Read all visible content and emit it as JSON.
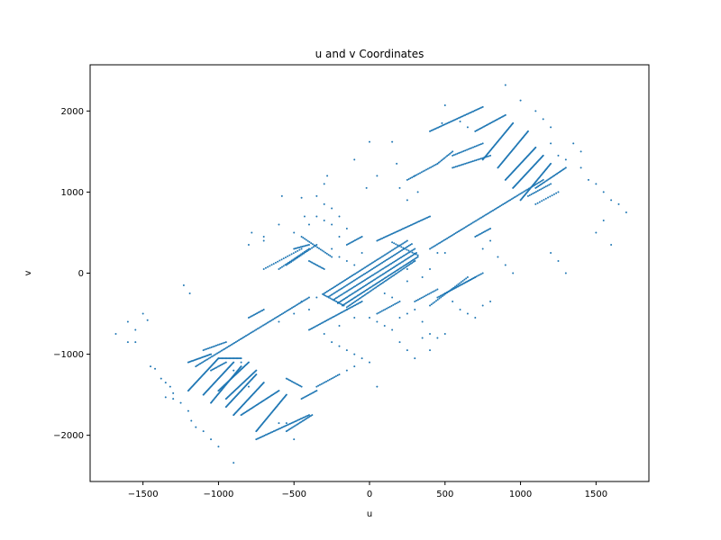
{
  "chart_data": {
    "type": "scatter",
    "title": "u and v Coordinates",
    "xlabel": "u",
    "ylabel": "v",
    "xlim": [
      -1850,
      1850
    ],
    "ylim": [
      -2570,
      2570
    ],
    "xticks": [
      -1500,
      -1000,
      -500,
      0,
      500,
      1000,
      1500
    ],
    "yticks": [
      -2000,
      -1000,
      0,
      1000,
      2000
    ],
    "xtick_labels": [
      "−1500",
      "−1000",
      "−500",
      "0",
      "500",
      "1000",
      "1500"
    ],
    "ytick_labels": [
      "−2000",
      "−1000",
      "0",
      "1000",
      "2000"
    ],
    "grid": false,
    "legend": "none",
    "marker_color": "#1f77b4",
    "segments": [
      {
        "from": [
          -300,
          -250
        ],
        "to": [
          250,
          400
        ],
        "n": 60
      },
      {
        "from": [
          -270,
          -290
        ],
        "to": [
          280,
          360
        ],
        "n": 60
      },
      {
        "from": [
          -240,
          -330
        ],
        "to": [
          300,
          300
        ],
        "n": 60
      },
      {
        "from": [
          -210,
          -370
        ],
        "to": [
          310,
          250
        ],
        "n": 60
      },
      {
        "from": [
          -180,
          -400
        ],
        "to": [
          320,
          200
        ],
        "n": 60
      },
      {
        "from": [
          -150,
          -420
        ],
        "to": [
          300,
          150
        ],
        "n": 50
      },
      {
        "from": [
          -310,
          -260
        ],
        "to": [
          -170,
          -400
        ],
        "n": 15
      },
      {
        "from": [
          150,
          380
        ],
        "to": [
          320,
          220
        ],
        "n": 15
      },
      {
        "from": [
          -400,
          -700
        ],
        "to": [
          -50,
          -350
        ],
        "n": 40
      },
      {
        "from": [
          50,
          400
        ],
        "to": [
          400,
          700
        ],
        "n": 40
      },
      {
        "from": [
          -1150,
          -1150
        ],
        "to": [
          -400,
          -300
        ],
        "n": 80
      },
      {
        "from": [
          400,
          300
        ],
        "to": [
          1150,
          1150
        ],
        "n": 80
      },
      {
        "from": [
          -750,
          -2050
        ],
        "to": [
          -400,
          -1750
        ],
        "n": 40
      },
      {
        "from": [
          400,
          1750
        ],
        "to": [
          750,
          2050
        ],
        "n": 40
      },
      {
        "from": [
          -550,
          -1950
        ],
        "to": [
          -380,
          -1750
        ],
        "n": 20
      },
      {
        "from": [
          -1200,
          -1100
        ],
        "to": [
          -1050,
          -1000
        ],
        "n": 20
      },
      {
        "from": [
          -1000,
          -1050
        ],
        "to": [
          -850,
          -1050
        ],
        "n": 20
      },
      {
        "from": [
          -750,
          -1950
        ],
        "to": [
          -550,
          -1500
        ],
        "n": 40
      },
      {
        "from": [
          -900,
          -1750
        ],
        "to": [
          -700,
          -1350
        ],
        "n": 40
      },
      {
        "from": [
          -950,
          -1650
        ],
        "to": [
          -750,
          -1250
        ],
        "n": 40
      },
      {
        "from": [
          -1050,
          -1600
        ],
        "to": [
          -850,
          -1150
        ],
        "n": 40
      },
      {
        "from": [
          -1100,
          -1500
        ],
        "to": [
          -900,
          -1100
        ],
        "n": 40
      },
      {
        "from": [
          -1200,
          -1450
        ],
        "to": [
          -1000,
          -1050
        ],
        "n": 40
      },
      {
        "from": [
          -1000,
          -1450
        ],
        "to": [
          -800,
          -1100
        ],
        "n": 35
      },
      {
        "from": [
          -950,
          -1550
        ],
        "to": [
          -750,
          -1200
        ],
        "n": 35
      },
      {
        "from": [
          -850,
          -1750
        ],
        "to": [
          -600,
          -1450
        ],
        "n": 35
      },
      {
        "from": [
          -1100,
          -950
        ],
        "to": [
          -950,
          -850
        ],
        "n": 15
      },
      {
        "from": [
          -1050,
          -1200
        ],
        "to": [
          -950,
          -1100
        ],
        "n": 12
      },
      {
        "from": [
          -450,
          -1550
        ],
        "to": [
          -350,
          -1450
        ],
        "n": 12
      },
      {
        "from": [
          -350,
          -1400
        ],
        "to": [
          -200,
          -1250
        ],
        "n": 15
      },
      {
        "from": [
          -550,
          -1300
        ],
        "to": [
          -450,
          -1400
        ],
        "n": 12
      },
      {
        "from": [
          550,
          1300
        ],
        "to": [
          800,
          1450
        ],
        "n": 25
      },
      {
        "from": [
          550,
          1450
        ],
        "to": [
          750,
          1600
        ],
        "n": 20
      },
      {
        "from": [
          700,
          1750
        ],
        "to": [
          900,
          1950
        ],
        "n": 25
      },
      {
        "from": [
          750,
          1400
        ],
        "to": [
          950,
          1850
        ],
        "n": 40
      },
      {
        "from": [
          850,
          1300
        ],
        "to": [
          1050,
          1750
        ],
        "n": 40
      },
      {
        "from": [
          900,
          1150
        ],
        "to": [
          1100,
          1550
        ],
        "n": 40
      },
      {
        "from": [
          950,
          1050
        ],
        "to": [
          1150,
          1450
        ],
        "n": 40
      },
      {
        "from": [
          1000,
          900
        ],
        "to": [
          1200,
          1350
        ],
        "n": 40
      },
      {
        "from": [
          1100,
          1050
        ],
        "to": [
          1300,
          1300
        ],
        "n": 25
      },
      {
        "from": [
          1050,
          950
        ],
        "to": [
          1200,
          1100
        ],
        "n": 15
      },
      {
        "from": [
          1100,
          850
        ],
        "to": [
          1250,
          1000
        ],
        "n": 12
      },
      {
        "from": [
          250,
          1150
        ],
        "to": [
          450,
          1350
        ],
        "n": 20
      },
      {
        "from": [
          450,
          1350
        ],
        "to": [
          550,
          1500
        ],
        "n": 12
      },
      {
        "from": [
          -450,
          450
        ],
        "to": [
          -250,
          200
        ],
        "n": 20
      },
      {
        "from": [
          -500,
          300
        ],
        "to": [
          -400,
          350
        ],
        "n": 12
      },
      {
        "from": [
          -550,
          100
        ],
        "to": [
          -350,
          350
        ],
        "n": 20
      },
      {
        "from": [
          -600,
          50
        ],
        "to": [
          -400,
          300
        ],
        "n": 20
      },
      {
        "from": [
          -700,
          50
        ],
        "to": [
          -450,
          300
        ],
        "n": 20
      },
      {
        "from": [
          -800,
          -550
        ],
        "to": [
          -700,
          -450
        ],
        "n": 12
      },
      {
        "from": [
          -400,
          150
        ],
        "to": [
          -300,
          50
        ],
        "n": 12
      },
      {
        "from": [
          -150,
          350
        ],
        "to": [
          -50,
          450
        ],
        "n": 12
      },
      {
        "from": [
          50,
          -500
        ],
        "to": [
          200,
          -350
        ],
        "n": 15
      },
      {
        "from": [
          300,
          -350
        ],
        "to": [
          450,
          -200
        ],
        "n": 15
      },
      {
        "from": [
          400,
          -400
        ],
        "to": [
          650,
          -50
        ],
        "n": 25
      },
      {
        "from": [
          450,
          -300
        ],
        "to": [
          700,
          -50
        ],
        "n": 25
      },
      {
        "from": [
          500,
          -250
        ],
        "to": [
          750,
          0
        ],
        "n": 25
      },
      {
        "from": [
          700,
          450
        ],
        "to": [
          800,
          550
        ],
        "n": 12
      }
    ],
    "scatter_points": [
      [
        -1680,
        -750
      ],
      [
        -1600,
        -850
      ],
      [
        -1550,
        -850
      ],
      [
        -1600,
        -600
      ],
      [
        -1550,
        -700
      ],
      [
        -1500,
        -500
      ],
      [
        -1470,
        -580
      ],
      [
        -1450,
        -1150
      ],
      [
        -1420,
        -1180
      ],
      [
        -1380,
        -1300
      ],
      [
        -1350,
        -1350
      ],
      [
        -1320,
        -1400
      ],
      [
        -1300,
        -1480
      ],
      [
        -1350,
        -1530
      ],
      [
        -1300,
        -1550
      ],
      [
        -1250,
        -1600
      ],
      [
        -1200,
        -1700
      ],
      [
        -1180,
        -1820
      ],
      [
        -1150,
        -1900
      ],
      [
        -1100,
        -1950
      ],
      [
        -1050,
        -2050
      ],
      [
        -1000,
        -2140
      ],
      [
        -900,
        -2340
      ],
      [
        -1230,
        -150
      ],
      [
        -1190,
        -250
      ],
      [
        -800,
        350
      ],
      [
        -780,
        500
      ],
      [
        -700,
        450
      ],
      [
        -700,
        400
      ],
      [
        -600,
        600
      ],
      [
        -580,
        950
      ],
      [
        -500,
        500
      ],
      [
        -450,
        930
      ],
      [
        -430,
        700
      ],
      [
        -400,
        600
      ],
      [
        -350,
        700
      ],
      [
        -300,
        650
      ],
      [
        -250,
        600
      ],
      [
        -200,
        700
      ],
      [
        -200,
        450
      ],
      [
        -150,
        550
      ],
      [
        -300,
        1100
      ],
      [
        -280,
        1200
      ],
      [
        -350,
        950
      ],
      [
        -300,
        850
      ],
      [
        -250,
        800
      ],
      [
        -100,
        1400
      ],
      [
        -20,
        1050
      ],
      [
        50,
        1200
      ],
      [
        150,
        1620
      ],
      [
        180,
        1350
      ],
      [
        200,
        1050
      ],
      [
        250,
        900
      ],
      [
        300,
        1200
      ],
      [
        320,
        1000
      ],
      [
        500,
        2070
      ],
      [
        480,
        1850
      ],
      [
        600,
        1870
      ],
      [
        650,
        1800
      ],
      [
        900,
        2320
      ],
      [
        1000,
        2130
      ],
      [
        1100,
        2000
      ],
      [
        1150,
        1900
      ],
      [
        1200,
        1800
      ],
      [
        1200,
        1600
      ],
      [
        1250,
        1450
      ],
      [
        1300,
        1400
      ],
      [
        1350,
        1600
      ],
      [
        1400,
        1300
      ],
      [
        1400,
        1500
      ],
      [
        1450,
        1150
      ],
      [
        1500,
        1100
      ],
      [
        1550,
        1000
      ],
      [
        1600,
        900
      ],
      [
        1650,
        850
      ],
      [
        1700,
        750
      ],
      [
        1500,
        500
      ],
      [
        1550,
        650
      ],
      [
        1600,
        350
      ],
      [
        1200,
        250
      ],
      [
        1250,
        150
      ],
      [
        1300,
        0
      ],
      [
        -300,
        -750
      ],
      [
        -250,
        -850
      ],
      [
        -200,
        -900
      ],
      [
        -150,
        -950
      ],
      [
        -100,
        -1000
      ],
      [
        -50,
        -1050
      ],
      [
        0,
        -1100
      ],
      [
        50,
        -1400
      ],
      [
        -100,
        -1150
      ],
      [
        -150,
        -1200
      ],
      [
        -500,
        -2050
      ],
      [
        -600,
        -1850
      ],
      [
        -550,
        -1850
      ],
      [
        -800,
        -1400
      ],
      [
        -850,
        -1100
      ],
      [
        -900,
        -1200
      ],
      [
        -600,
        -600
      ],
      [
        -500,
        -500
      ],
      [
        -450,
        -350
      ],
      [
        -400,
        -450
      ],
      [
        -350,
        -300
      ],
      [
        -100,
        -550
      ],
      [
        -150,
        -450
      ],
      [
        -200,
        -650
      ],
      [
        0,
        -550
      ],
      [
        50,
        -600
      ],
      [
        100,
        -650
      ],
      [
        150,
        -700
      ],
      [
        200,
        -850
      ],
      [
        250,
        -950
      ],
      [
        300,
        -1050
      ],
      [
        350,
        -800
      ],
      [
        400,
        -750
      ],
      [
        400,
        -950
      ],
      [
        450,
        -800
      ],
      [
        500,
        -750
      ],
      [
        350,
        -600
      ],
      [
        300,
        -450
      ],
      [
        250,
        -500
      ],
      [
        200,
        -550
      ],
      [
        150,
        -300
      ],
      [
        550,
        -350
      ],
      [
        600,
        -450
      ],
      [
        650,
        -500
      ],
      [
        700,
        -550
      ],
      [
        750,
        -400
      ],
      [
        800,
        -350
      ],
      [
        450,
        250
      ],
      [
        500,
        250
      ],
      [
        400,
        50
      ],
      [
        350,
        -50
      ],
      [
        300,
        150
      ],
      [
        250,
        -100
      ],
      [
        250,
        50
      ],
      [
        100,
        -250
      ],
      [
        -50,
        250
      ],
      [
        -100,
        100
      ],
      [
        -150,
        150
      ],
      [
        -200,
        200
      ],
      [
        -250,
        300
      ],
      [
        0,
        1620
      ],
      [
        750,
        300
      ],
      [
        800,
        400
      ],
      [
        850,
        200
      ],
      [
        900,
        100
      ],
      [
        950,
        0
      ]
    ]
  }
}
